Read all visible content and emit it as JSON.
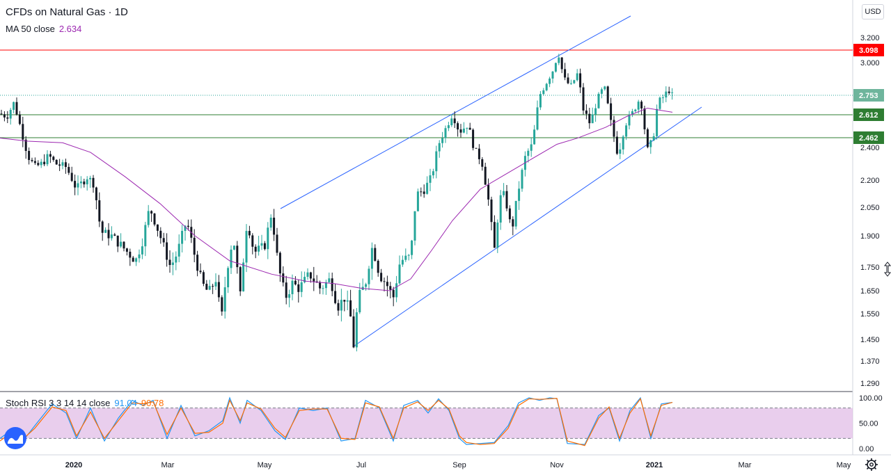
{
  "header": {
    "symbol_title": "CFDs on Natural Gas · 1D",
    "ma_label": "MA 50 close",
    "ma_value": "2.634",
    "currency_button": "USD"
  },
  "stoch": {
    "label": "Stoch RSI 3 3 14 14 close",
    "k_value": "91.04",
    "d_value": "90.78"
  },
  "colors": {
    "up": "#26a69a",
    "down": "#131722",
    "ma": "#9c27b0",
    "resistance": "#ff0000",
    "support": "#2e7d32",
    "channel": "#2962ff",
    "current": "#26a69a",
    "stoch_k": "#2196f3",
    "stoch_d": "#ff6d00",
    "stoch_band": "#e1bee7"
  },
  "icons": {
    "logo": "tradingview-logo",
    "settings": "gear-icon"
  },
  "chart_data": [
    {
      "type": "candlestick",
      "title": "CFDs on Natural Gas · 1D",
      "y_ticks": [
        "1.290",
        "1.370",
        "1.450",
        "1.550",
        "1.650",
        "1.750",
        "1.900",
        "2.050",
        "2.200",
        "2.400",
        "3.000",
        "3.200"
      ],
      "x_ticks": [
        "2020",
        "Mar",
        "May",
        "Jul",
        "Sep",
        "Nov",
        "2021",
        "Mar",
        "May"
      ],
      "price_labels": [
        {
          "label": "3.098",
          "value": 3.098,
          "kind": "resistance"
        },
        {
          "label": "2.753",
          "value": 2.753,
          "kind": "current"
        },
        {
          "label": "2.612",
          "value": 2.612,
          "kind": "support"
        },
        {
          "label": "2.462",
          "value": 2.462,
          "kind": "support"
        }
      ],
      "horizontal_lines": [
        {
          "value": 3.098,
          "style": "solid",
          "kind": "resistance"
        },
        {
          "value": 2.612,
          "style": "solid",
          "kind": "support"
        },
        {
          "value": 2.462,
          "style": "solid",
          "kind": "support"
        },
        {
          "value": 2.753,
          "style": "dotted",
          "kind": "current"
        }
      ],
      "series": [
        {
          "name": "MA 50 close",
          "values_note": "see points",
          "points": [
            [
              0,
              2.46
            ],
            [
              40,
              2.44
            ],
            [
              90,
              2.43
            ],
            [
              130,
              2.37
            ],
            [
              180,
              2.22
            ],
            [
              230,
              2.07
            ],
            [
              280,
              1.9
            ],
            [
              330,
              1.78
            ],
            [
              390,
              1.72
            ],
            [
              440,
              1.69
            ],
            [
              480,
              1.68
            ],
            [
              520,
              1.66
            ],
            [
              560,
              1.65
            ],
            [
              590,
              1.7
            ],
            [
              620,
              1.83
            ],
            [
              650,
              1.98
            ],
            [
              690,
              2.15
            ],
            [
              720,
              2.22
            ],
            [
              760,
              2.32
            ],
            [
              800,
              2.42
            ],
            [
              830,
              2.46
            ],
            [
              870,
              2.53
            ],
            [
              900,
              2.6
            ],
            [
              930,
              2.66
            ],
            [
              966,
              2.63
            ]
          ]
        }
      ],
      "ohlc_close_path": [
        [
          0,
          2.62
        ],
        [
          10,
          2.6
        ],
        [
          20,
          2.7
        ],
        [
          30,
          2.52
        ],
        [
          40,
          2.35
        ],
        [
          50,
          2.28
        ],
        [
          60,
          2.3
        ],
        [
          70,
          2.35
        ],
        [
          80,
          2.3
        ],
        [
          95,
          2.28
        ],
        [
          110,
          2.15
        ],
        [
          125,
          2.22
        ],
        [
          135,
          2.18
        ],
        [
          145,
          1.92
        ],
        [
          160,
          1.9
        ],
        [
          175,
          1.85
        ],
        [
          195,
          1.78
        ],
        [
          205,
          1.88
        ],
        [
          215,
          2.05
        ],
        [
          225,
          1.95
        ],
        [
          235,
          1.85
        ],
        [
          245,
          1.75
        ],
        [
          255,
          1.82
        ],
        [
          268,
          1.98
        ],
        [
          280,
          1.8
        ],
        [
          290,
          1.68
        ],
        [
          300,
          1.64
        ],
        [
          310,
          1.7
        ],
        [
          318,
          1.52
        ],
        [
          325,
          1.72
        ],
        [
          335,
          1.9
        ],
        [
          345,
          1.62
        ],
        [
          355,
          1.98
        ],
        [
          365,
          1.82
        ],
        [
          380,
          1.85
        ],
        [
          390,
          2.02
        ],
        [
          400,
          1.75
        ],
        [
          410,
          1.62
        ],
        [
          420,
          1.68
        ],
        [
          430,
          1.66
        ],
        [
          445,
          1.72
        ],
        [
          460,
          1.66
        ],
        [
          475,
          1.7
        ],
        [
          485,
          1.58
        ],
        [
          495,
          1.62
        ],
        [
          503,
          1.55
        ],
        [
          508,
          1.43
        ],
        [
          515,
          1.62
        ],
        [
          525,
          1.68
        ],
        [
          535,
          1.85
        ],
        [
          545,
          1.72
        ],
        [
          555,
          1.68
        ],
        [
          565,
          1.62
        ],
        [
          575,
          1.78
        ],
        [
          590,
          1.8
        ],
        [
          598,
          2.12
        ],
        [
          610,
          2.15
        ],
        [
          620,
          2.22
        ],
        [
          630,
          2.42
        ],
        [
          640,
          2.52
        ],
        [
          650,
          2.62
        ],
        [
          660,
          2.5
        ],
        [
          672,
          2.55
        ],
        [
          682,
          2.38
        ],
        [
          692,
          2.32
        ],
        [
          702,
          2.08
        ],
        [
          710,
          1.82
        ],
        [
          718,
          2.1
        ],
        [
          725,
          2.12
        ],
        [
          735,
          1.92
        ],
        [
          745,
          2.15
        ],
        [
          755,
          2.35
        ],
        [
          765,
          2.42
        ],
        [
          775,
          2.75
        ],
        [
          785,
          2.85
        ],
        [
          795,
          2.95
        ],
        [
          802,
          3.08
        ],
        [
          810,
          2.88
        ],
        [
          820,
          2.82
        ],
        [
          830,
          2.92
        ],
        [
          838,
          2.65
        ],
        [
          848,
          2.55
        ],
        [
          858,
          2.72
        ],
        [
          868,
          2.82
        ],
        [
          878,
          2.55
        ],
        [
          888,
          2.35
        ],
        [
          898,
          2.55
        ],
        [
          908,
          2.62
        ],
        [
          920,
          2.74
        ],
        [
          930,
          2.38
        ],
        [
          938,
          2.45
        ],
        [
          945,
          2.7
        ],
        [
          955,
          2.75
        ],
        [
          960,
          2.8
        ],
        [
          966,
          2.75
        ]
      ]
    },
    {
      "type": "line",
      "title": "Stoch RSI 3 3 14 14 close",
      "y_ticks": [
        "100.00",
        "50.00",
        "0.00"
      ],
      "band": [
        20,
        80
      ],
      "series": [
        {
          "name": "K",
          "value": 91.04,
          "points": [
            [
              0,
              20
            ],
            [
              15,
              35
            ],
            [
              30,
              10
            ],
            [
              50,
              45
            ],
            [
              75,
              88
            ],
            [
              95,
              70
            ],
            [
              110,
              20
            ],
            [
              130,
              80
            ],
            [
              150,
              15
            ],
            [
              170,
              60
            ],
            [
              190,
              95
            ],
            [
              205,
              85
            ],
            [
              220,
              95
            ],
            [
              240,
              20
            ],
            [
              260,
              85
            ],
            [
              280,
              25
            ],
            [
              300,
              35
            ],
            [
              320,
              55
            ],
            [
              330,
              100
            ],
            [
              345,
              50
            ],
            [
              355,
              95
            ],
            [
              375,
              75
            ],
            [
              395,
              35
            ],
            [
              410,
              18
            ],
            [
              430,
              80
            ],
            [
              450,
              75
            ],
            [
              470,
              80
            ],
            [
              490,
              15
            ],
            [
              510,
              20
            ],
            [
              525,
              95
            ],
            [
              545,
              80
            ],
            [
              565,
              15
            ],
            [
              580,
              85
            ],
            [
              600,
              95
            ],
            [
              615,
              70
            ],
            [
              630,
              98
            ],
            [
              645,
              75
            ],
            [
              660,
              20
            ],
            [
              670,
              8
            ],
            [
              690,
              10
            ],
            [
              710,
              12
            ],
            [
              730,
              45
            ],
            [
              745,
              90
            ],
            [
              760,
              100
            ],
            [
              775,
              95
            ],
            [
              790,
              100
            ],
            [
              800,
              98
            ],
            [
              815,
              10
            ],
            [
              840,
              8
            ],
            [
              860,
              65
            ],
            [
              875,
              80
            ],
            [
              890,
              15
            ],
            [
              905,
              75
            ],
            [
              920,
              100
            ],
            [
              935,
              20
            ],
            [
              950,
              88
            ],
            [
              966,
              91
            ]
          ]
        },
        {
          "name": "D",
          "value": 90.78,
          "points": [
            [
              0,
              15
            ],
            [
              15,
              30
            ],
            [
              30,
              15
            ],
            [
              50,
              40
            ],
            [
              75,
              82
            ],
            [
              95,
              75
            ],
            [
              110,
              25
            ],
            [
              130,
              72
            ],
            [
              150,
              20
            ],
            [
              170,
              55
            ],
            [
              190,
              90
            ],
            [
              205,
              88
            ],
            [
              220,
              92
            ],
            [
              240,
              28
            ],
            [
              260,
              80
            ],
            [
              280,
              30
            ],
            [
              300,
              32
            ],
            [
              320,
              50
            ],
            [
              330,
              95
            ],
            [
              345,
              55
            ],
            [
              355,
              90
            ],
            [
              375,
              78
            ],
            [
              395,
              40
            ],
            [
              410,
              22
            ],
            [
              430,
              75
            ],
            [
              450,
              78
            ],
            [
              470,
              78
            ],
            [
              490,
              20
            ],
            [
              510,
              18
            ],
            [
              525,
              90
            ],
            [
              545,
              82
            ],
            [
              565,
              20
            ],
            [
              580,
              80
            ],
            [
              600,
              92
            ],
            [
              615,
              75
            ],
            [
              630,
              95
            ],
            [
              645,
              78
            ],
            [
              660,
              25
            ],
            [
              670,
              12
            ],
            [
              690,
              8
            ],
            [
              710,
              10
            ],
            [
              730,
              40
            ],
            [
              745,
              85
            ],
            [
              760,
              98
            ],
            [
              775,
              97
            ],
            [
              790,
              98
            ],
            [
              800,
              99
            ],
            [
              815,
              15
            ],
            [
              840,
              6
            ],
            [
              860,
              60
            ],
            [
              875,
              82
            ],
            [
              890,
              20
            ],
            [
              905,
              70
            ],
            [
              920,
              98
            ],
            [
              935,
              25
            ],
            [
              950,
              85
            ],
            [
              966,
              91
            ]
          ]
        }
      ]
    }
  ]
}
